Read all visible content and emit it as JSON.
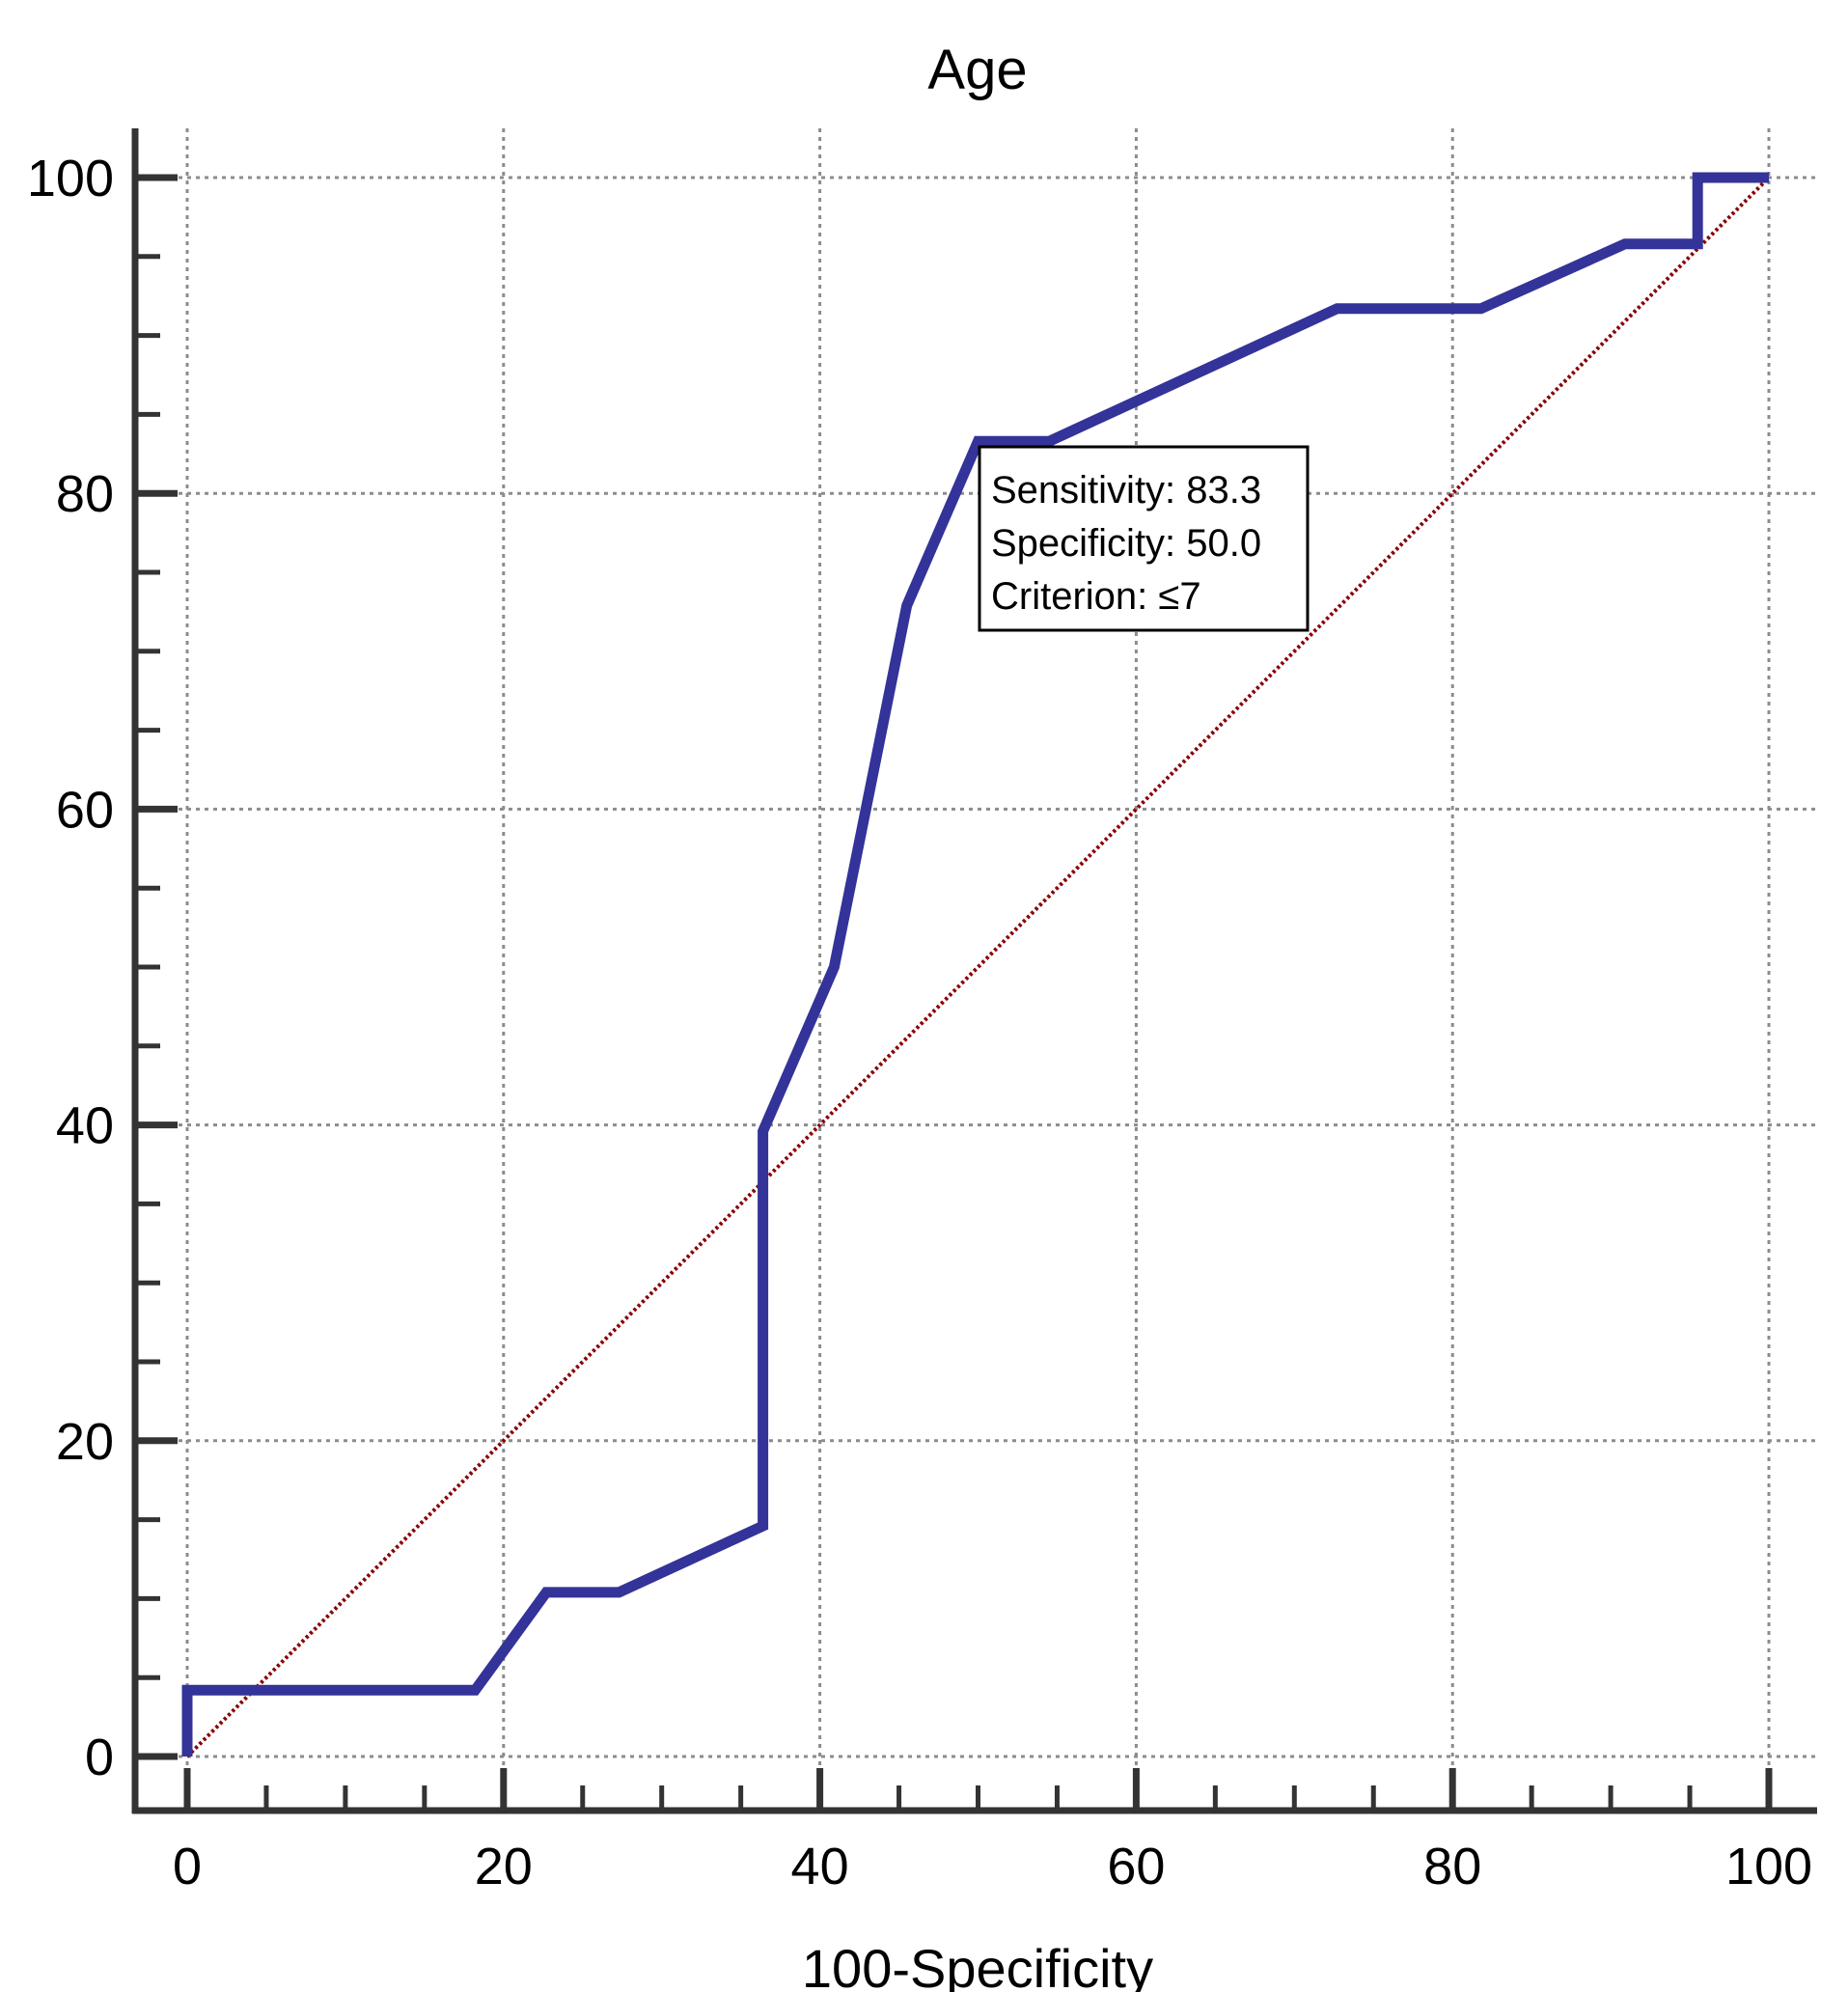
{
  "chart_data": {
    "type": "line",
    "title": "Age",
    "xlabel": "100-Specificity",
    "ylabel": "",
    "xlim": [
      0,
      100
    ],
    "ylim": [
      0,
      100
    ],
    "xticks": [
      "0",
      "20",
      "40",
      "60",
      "80",
      "100"
    ],
    "yticks": [
      "0",
      "20",
      "40",
      "60",
      "80",
      "100"
    ],
    "grid": true,
    "series": [
      {
        "color": "#333399",
        "x": [
          0,
          0,
          18.2,
          22.7,
          27.3,
          36.4,
          36.4,
          40.9,
          45.5,
          50.0,
          54.5,
          72.7,
          81.8,
          90.9,
          95.5,
          95.5,
          100
        ],
        "y": [
          0,
          4.2,
          4.2,
          10.4,
          10.4,
          14.6,
          39.6,
          50.0,
          72.9,
          83.3,
          83.3,
          91.7,
          91.7,
          95.8,
          95.8,
          100,
          100
        ]
      },
      {
        "color": "#8b0000",
        "style": "dotted",
        "x": [
          0,
          100
        ],
        "y": [
          0,
          100
        ]
      }
    ],
    "annotation": {
      "lines": [
        "Sensitivity: 83.3",
        "Specificity: 50.0",
        "Criterion: ≤7"
      ],
      "position": "right of point"
    }
  }
}
